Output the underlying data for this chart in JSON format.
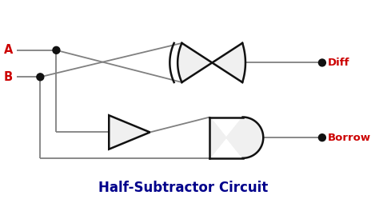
{
  "title": "Half-Subtractor Circuit",
  "title_color": "#00008B",
  "title_fontsize": 12,
  "label_A": "A",
  "label_B": "B",
  "label_Diff": "Diff",
  "label_Borrow": "Borrow",
  "label_color": "#CC0000",
  "wire_color": "#808080",
  "gate_fill": "#F0F0F0",
  "gate_edge": "#111111",
  "dot_color": "#111111",
  "background_color": "#FFFFFF",
  "wire_lw": 1.3,
  "gate_lw": 1.8
}
